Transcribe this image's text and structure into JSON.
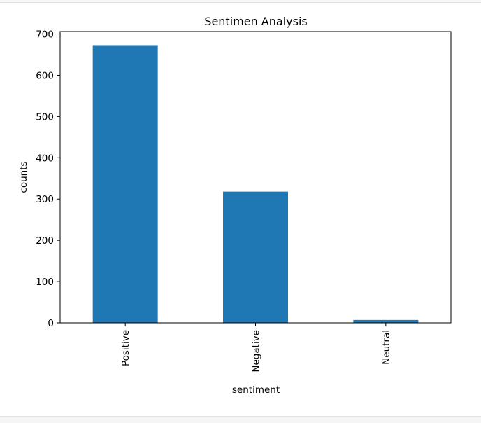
{
  "chart_data": {
    "type": "bar",
    "title": "Sentimen Analysis",
    "xlabel": "sentiment",
    "ylabel": "counts",
    "categories": [
      "Positive",
      "Negative",
      "Neutral"
    ],
    "values": [
      673,
      318,
      7
    ],
    "ylim": [
      0,
      706
    ],
    "yticks": [
      0,
      100,
      200,
      300,
      400,
      500,
      600,
      700
    ],
    "grid": false,
    "bar_color": "#1f77b4"
  }
}
